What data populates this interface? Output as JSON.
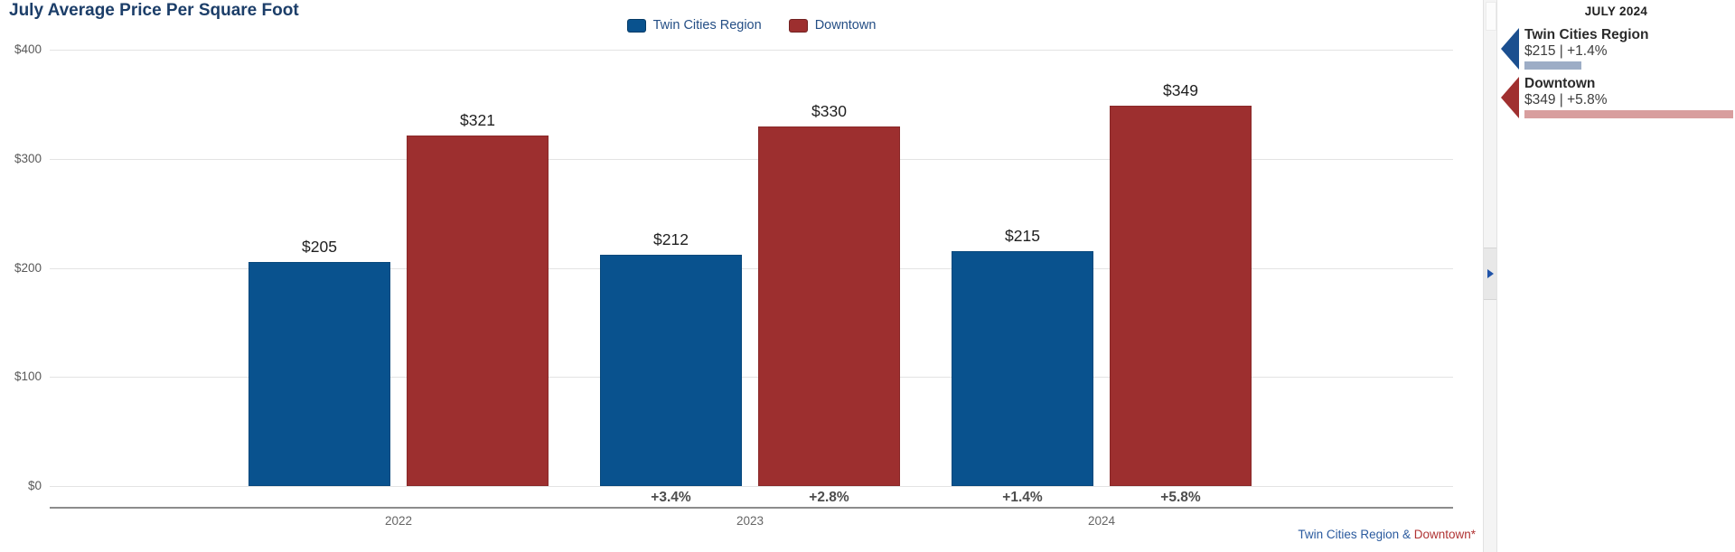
{
  "title": "July Average Price Per Square Foot",
  "legend": [
    {
      "label": "Twin Cities Region",
      "color": "#09528e"
    },
    {
      "label": "Downtown",
      "color": "#9d2f2f"
    }
  ],
  "chart_data": {
    "type": "bar",
    "title": "July Average Price Per Square Foot",
    "categories": [
      "2022",
      "2023",
      "2024"
    ],
    "series": [
      {
        "name": "Twin Cities Region",
        "color": "#09528e",
        "values": [
          205,
          212,
          215
        ],
        "pct_change": [
          null,
          "+3.4%",
          "+1.4%"
        ]
      },
      {
        "name": "Downtown",
        "color": "#9d2f2f",
        "values": [
          321,
          330,
          349
        ],
        "pct_change": [
          null,
          "+2.8%",
          "+5.8%"
        ]
      }
    ],
    "ylim": [
      0,
      400
    ],
    "yticks": [
      "$400",
      "$300",
      "$200",
      "$100",
      "$0"
    ],
    "grid": true,
    "legend_position": "top-center",
    "value_label_format": "$<value>"
  },
  "footer": {
    "left_part": "Twin Cities Region & ",
    "right_part": "Downtown*"
  },
  "panel_toggle": {
    "icon": "chevron-right"
  },
  "sidebar": {
    "heading": "JULY 2024",
    "stats": [
      {
        "name": "Twin Cities Region",
        "value_line": "$215 | +1.4%",
        "arrow_color": "#1b4f8f",
        "bar_color": "#9dadc6"
      },
      {
        "name": "Downtown",
        "value_line": "$349 | +5.8%",
        "arrow_color": "#a03030",
        "bar_color": "#d89e9e"
      }
    ]
  },
  "colors": {
    "title_navy": "#1c3e69",
    "legend_text": "#244e85",
    "footer_blue": "#2a5a9e",
    "footer_red": "#b03333",
    "axis_text": "#595959",
    "value_text": "#1f1f1f",
    "pct_text": "#4d4d4d"
  }
}
